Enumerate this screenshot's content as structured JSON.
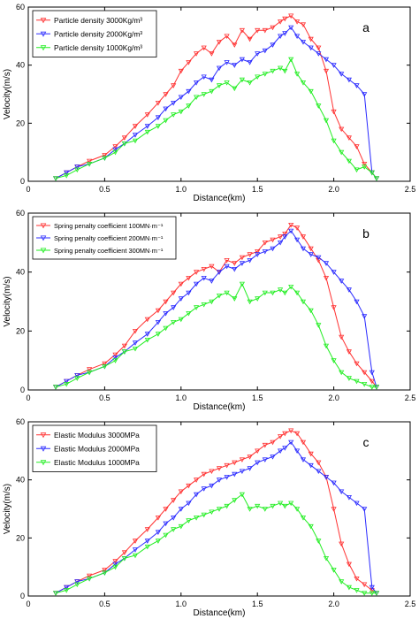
{
  "colors": {
    "red": "#ff3030",
    "blue": "#2a2aff",
    "green": "#22ee22",
    "axis": "#000000"
  },
  "chart_data": [
    {
      "type": "line",
      "panel_label": "a",
      "xlabel": "Distance(km)",
      "ylabel": "Velocity(m/s)",
      "xlim": [
        0,
        2.5
      ],
      "ylim": [
        0,
        60
      ],
      "xticks": [
        "0",
        "0.5",
        "1.0",
        "1.5",
        "2.0",
        "2.5"
      ],
      "yticks": [
        "0",
        "20",
        "40",
        "60"
      ],
      "legend_position": "top-left",
      "series": [
        {
          "name": "Particle density    3000Kg/m³",
          "color": "#ff3030",
          "marker": "triangle-down",
          "x": [
            0.18,
            0.25,
            0.32,
            0.4,
            0.5,
            0.57,
            0.63,
            0.7,
            0.78,
            0.85,
            0.9,
            0.95,
            1.0,
            1.05,
            1.1,
            1.15,
            1.2,
            1.25,
            1.3,
            1.35,
            1.4,
            1.45,
            1.5,
            1.55,
            1.6,
            1.65,
            1.68,
            1.72,
            1.76,
            1.8,
            1.85,
            1.9,
            1.95,
            2.0,
            2.05,
            2.1,
            2.15,
            2.2,
            2.25,
            2.28
          ],
          "y": [
            1,
            3,
            5,
            7,
            9,
            12,
            15,
            19,
            23,
            27,
            30,
            33,
            38,
            41,
            44,
            46,
            44,
            48,
            50,
            47,
            52,
            49,
            52,
            52,
            53,
            55,
            56,
            57,
            55,
            54,
            49,
            46,
            38,
            24,
            18,
            15,
            12,
            6,
            3,
            1
          ]
        },
        {
          "name": "Particle density    2000Kg/m³",
          "color": "#2a2aff",
          "marker": "triangle-down",
          "x": [
            0.18,
            0.25,
            0.32,
            0.4,
            0.5,
            0.57,
            0.63,
            0.7,
            0.78,
            0.85,
            0.9,
            0.95,
            1.0,
            1.05,
            1.1,
            1.15,
            1.2,
            1.25,
            1.3,
            1.35,
            1.4,
            1.45,
            1.5,
            1.55,
            1.6,
            1.65,
            1.68,
            1.72,
            1.76,
            1.8,
            1.85,
            1.9,
            1.95,
            2.0,
            2.05,
            2.1,
            2.15,
            2.2,
            2.25,
            2.28
          ],
          "y": [
            1,
            3,
            5,
            6,
            8,
            11,
            13,
            16,
            19,
            22,
            25,
            27,
            29,
            31,
            34,
            36,
            35,
            39,
            41,
            40,
            42,
            41,
            44,
            45,
            47,
            50,
            51,
            53,
            50,
            48,
            46,
            44,
            42,
            40,
            37,
            35,
            33,
            30,
            3,
            1
          ]
        },
        {
          "name": "Particle density    1000Kg/m³",
          "color": "#22ee22",
          "marker": "triangle-down",
          "x": [
            0.18,
            0.25,
            0.32,
            0.4,
            0.5,
            0.57,
            0.63,
            0.7,
            0.78,
            0.85,
            0.9,
            0.95,
            1.0,
            1.05,
            1.1,
            1.15,
            1.2,
            1.25,
            1.3,
            1.35,
            1.4,
            1.45,
            1.5,
            1.55,
            1.6,
            1.65,
            1.68,
            1.72,
            1.76,
            1.8,
            1.85,
            1.9,
            1.95,
            2.0,
            2.05,
            2.1,
            2.15,
            2.2,
            2.25,
            2.28
          ],
          "y": [
            1,
            2,
            4,
            6,
            8,
            10,
            13,
            14,
            17,
            19,
            21,
            23,
            24,
            26,
            29,
            30,
            31,
            33,
            34,
            32,
            35,
            34,
            36,
            37,
            38,
            39,
            38,
            42,
            37,
            34,
            31,
            26,
            21,
            14,
            10,
            7,
            4,
            5,
            3,
            1
          ]
        }
      ]
    },
    {
      "type": "line",
      "panel_label": "b",
      "xlabel": "Distance(km)",
      "ylabel": "Velocity(m/s)",
      "xlim": [
        0,
        2.5
      ],
      "ylim": [
        0,
        60
      ],
      "xticks": [
        "0",
        "0.5",
        "1.0",
        "1.5",
        "2.0",
        "2.5"
      ],
      "yticks": [
        "0",
        "20",
        "40",
        "60"
      ],
      "legend_position": "top-left",
      "series": [
        {
          "name": "Spring penalty coefficient    100MN·m⁻¹",
          "color": "#ff3030",
          "marker": "triangle-down",
          "x": [
            0.18,
            0.25,
            0.32,
            0.4,
            0.5,
            0.57,
            0.63,
            0.7,
            0.78,
            0.85,
            0.9,
            0.95,
            1.0,
            1.05,
            1.1,
            1.15,
            1.2,
            1.25,
            1.3,
            1.35,
            1.4,
            1.45,
            1.5,
            1.55,
            1.6,
            1.65,
            1.68,
            1.72,
            1.76,
            1.8,
            1.85,
            1.9,
            1.95,
            2.0,
            2.05,
            2.1,
            2.15,
            2.2,
            2.25,
            2.28
          ],
          "y": [
            1,
            3,
            5,
            7,
            9,
            12,
            15,
            20,
            24,
            27,
            30,
            33,
            36,
            38,
            40,
            41,
            42,
            40,
            44,
            43,
            45,
            46,
            47,
            50,
            51,
            52,
            53,
            56,
            55,
            52,
            48,
            44,
            38,
            28,
            18,
            13,
            9,
            6,
            3,
            1
          ]
        },
        {
          "name": "Spring penalty coefficient    200MN·m⁻¹",
          "color": "#2a2aff",
          "marker": "triangle-down",
          "x": [
            0.18,
            0.25,
            0.32,
            0.4,
            0.5,
            0.57,
            0.63,
            0.7,
            0.78,
            0.85,
            0.9,
            0.95,
            1.0,
            1.05,
            1.1,
            1.15,
            1.2,
            1.25,
            1.3,
            1.35,
            1.4,
            1.45,
            1.5,
            1.55,
            1.6,
            1.65,
            1.68,
            1.72,
            1.76,
            1.8,
            1.85,
            1.9,
            1.95,
            2.0,
            2.05,
            2.1,
            2.15,
            2.2,
            2.25,
            2.28
          ],
          "y": [
            1,
            3,
            5,
            6,
            8,
            11,
            13,
            16,
            19,
            23,
            26,
            28,
            31,
            33,
            36,
            38,
            37,
            40,
            42,
            41,
            43,
            44,
            46,
            47,
            48,
            50,
            52,
            54,
            51,
            48,
            46,
            45,
            43,
            40,
            37,
            34,
            30,
            25,
            6,
            1
          ]
        },
        {
          "name": "Spring penalty coefficient    300MN·m⁻¹",
          "color": "#22ee22",
          "marker": "triangle-down",
          "x": [
            0.18,
            0.25,
            0.32,
            0.4,
            0.5,
            0.57,
            0.63,
            0.7,
            0.78,
            0.85,
            0.9,
            0.95,
            1.0,
            1.05,
            1.1,
            1.15,
            1.2,
            1.25,
            1.3,
            1.35,
            1.4,
            1.45,
            1.5,
            1.55,
            1.6,
            1.65,
            1.68,
            1.72,
            1.76,
            1.8,
            1.85,
            1.9,
            1.95,
            2.0,
            2.05,
            2.1,
            2.15,
            2.2,
            2.25,
            2.28
          ],
          "y": [
            1,
            2,
            4,
            6,
            8,
            10,
            13,
            14,
            17,
            19,
            21,
            23,
            24,
            26,
            28,
            29,
            30,
            32,
            33,
            31,
            36,
            30,
            31,
            33,
            33,
            34,
            33,
            35,
            33,
            30,
            27,
            22,
            15,
            10,
            6,
            4,
            3,
            2,
            1,
            1
          ]
        }
      ]
    },
    {
      "type": "line",
      "panel_label": "c",
      "xlabel": "Distance(km)",
      "ylabel": "Velocity(m/s)",
      "xlim": [
        0,
        2.5
      ],
      "ylim": [
        0,
        60
      ],
      "xticks": [
        "0",
        "0.5",
        "1.0",
        "1.5",
        "2.0",
        "2.5"
      ],
      "yticks": [
        "0",
        "20",
        "40",
        "60"
      ],
      "legend_position": "top-left",
      "series": [
        {
          "name": "Elastic Modulus    3000MPa",
          "color": "#ff3030",
          "marker": "triangle-down",
          "x": [
            0.18,
            0.25,
            0.32,
            0.4,
            0.5,
            0.57,
            0.63,
            0.7,
            0.78,
            0.85,
            0.9,
            0.95,
            1.0,
            1.05,
            1.1,
            1.15,
            1.2,
            1.25,
            1.3,
            1.35,
            1.4,
            1.45,
            1.5,
            1.55,
            1.6,
            1.65,
            1.68,
            1.72,
            1.76,
            1.8,
            1.85,
            1.9,
            1.95,
            2.0,
            2.05,
            2.1,
            2.15,
            2.2,
            2.25,
            2.28
          ],
          "y": [
            1,
            3,
            5,
            7,
            9,
            12,
            15,
            19,
            23,
            27,
            30,
            33,
            36,
            38,
            40,
            42,
            43,
            44,
            45,
            46,
            47,
            48,
            50,
            52,
            53,
            55,
            56,
            57,
            56,
            53,
            49,
            46,
            41,
            30,
            18,
            11,
            6,
            4,
            2,
            1
          ]
        },
        {
          "name": "Elastic Modulus    2000MPa",
          "color": "#2a2aff",
          "marker": "triangle-down",
          "x": [
            0.18,
            0.25,
            0.32,
            0.4,
            0.5,
            0.57,
            0.63,
            0.7,
            0.78,
            0.85,
            0.9,
            0.95,
            1.0,
            1.05,
            1.1,
            1.15,
            1.2,
            1.25,
            1.3,
            1.35,
            1.4,
            1.45,
            1.5,
            1.55,
            1.6,
            1.65,
            1.68,
            1.72,
            1.76,
            1.8,
            1.85,
            1.9,
            1.95,
            2.0,
            2.05,
            2.1,
            2.15,
            2.2,
            2.25,
            2.28
          ],
          "y": [
            1,
            3,
            5,
            6,
            8,
            11,
            13,
            16,
            19,
            22,
            25,
            27,
            30,
            32,
            35,
            37,
            38,
            40,
            41,
            42,
            43,
            44,
            46,
            47,
            48,
            50,
            51,
            53,
            50,
            47,
            45,
            43,
            41,
            39,
            36,
            34,
            32,
            30,
            3,
            1
          ]
        },
        {
          "name": "Elastic Modulus    1000MPa",
          "color": "#22ee22",
          "marker": "triangle-down",
          "x": [
            0.18,
            0.25,
            0.32,
            0.4,
            0.5,
            0.57,
            0.63,
            0.7,
            0.78,
            0.85,
            0.9,
            0.95,
            1.0,
            1.05,
            1.1,
            1.15,
            1.2,
            1.25,
            1.3,
            1.35,
            1.4,
            1.45,
            1.5,
            1.55,
            1.6,
            1.65,
            1.68,
            1.72,
            1.76,
            1.8,
            1.85,
            1.9,
            1.95,
            2.0,
            2.05,
            2.1,
            2.15,
            2.2,
            2.25,
            2.28
          ],
          "y": [
            1,
            2,
            4,
            6,
            8,
            10,
            13,
            14,
            17,
            19,
            21,
            23,
            24,
            26,
            27,
            28,
            29,
            30,
            31,
            33,
            35,
            30,
            31,
            30,
            31,
            32,
            31,
            32,
            30,
            27,
            24,
            19,
            13,
            9,
            5,
            3,
            2,
            1,
            1,
            1
          ]
        }
      ]
    }
  ]
}
